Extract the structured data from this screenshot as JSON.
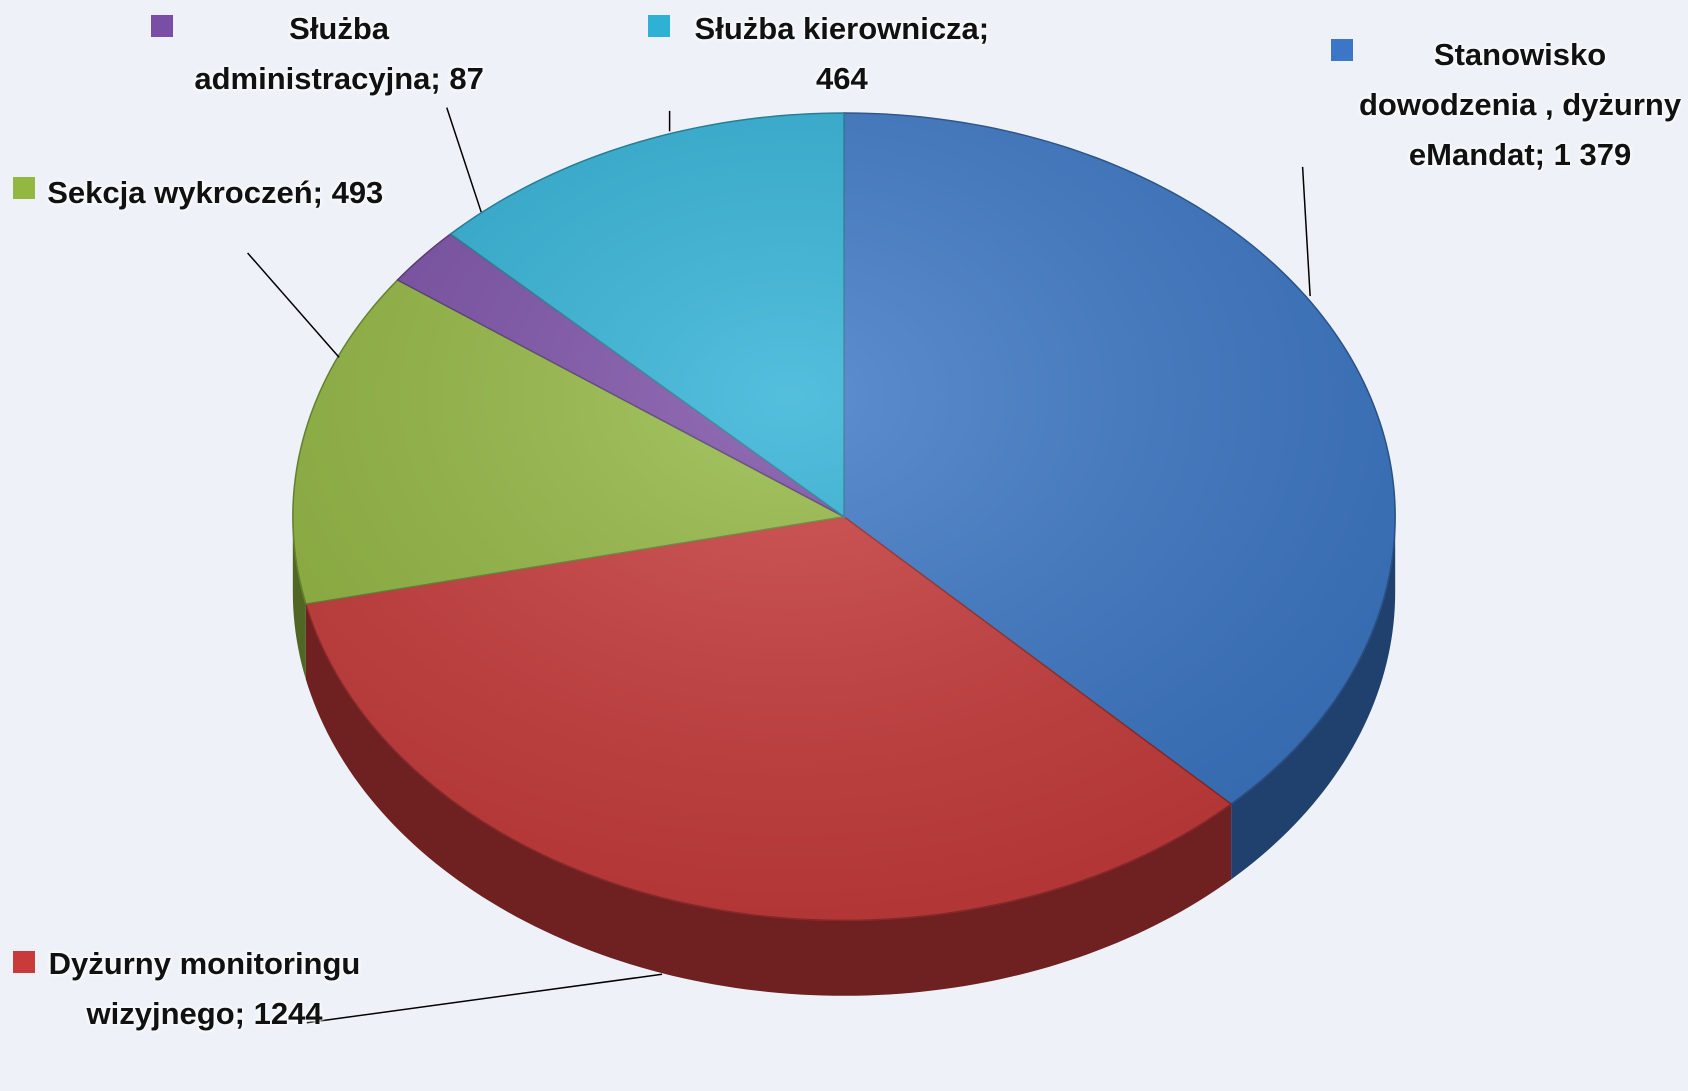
{
  "chart_data": {
    "type": "pie",
    "categories": [
      "Stanowisko dowodzenia , dyżurny eMandat;",
      "Dyżurny monitoringu wizyjnego;",
      "Sekcja wykroczeń;",
      "Służba administracyjna;",
      "Służba kierownicza;"
    ],
    "values": [
      1379,
      1244,
      493,
      87,
      464
    ],
    "value_labels": [
      "1 379",
      "1244",
      "493",
      "87",
      "464"
    ],
    "colors": [
      "#3b77c6",
      "#c93b3b",
      "#93b842",
      "#7a4ea6",
      "#2fb1d6"
    ],
    "three_d": true
  }
}
